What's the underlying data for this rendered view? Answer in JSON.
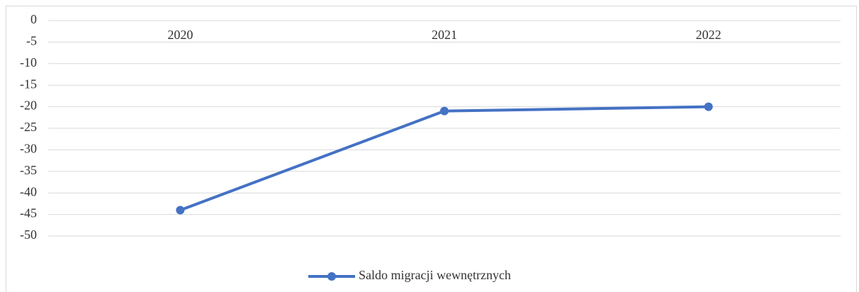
{
  "chart_data": {
    "type": "line",
    "categories": [
      "2020",
      "2021",
      "2022"
    ],
    "series": [
      {
        "name": "Saldo migracji wewnętrznych",
        "color": "#4472c4",
        "values": [
          -44,
          -21,
          -20
        ]
      }
    ],
    "ylim": [
      -50,
      0
    ],
    "yticks": [
      0,
      -5,
      -10,
      -15,
      -20,
      -25,
      -30,
      -35,
      -40,
      -45,
      -50
    ],
    "grid": true,
    "legend": "bottom"
  }
}
